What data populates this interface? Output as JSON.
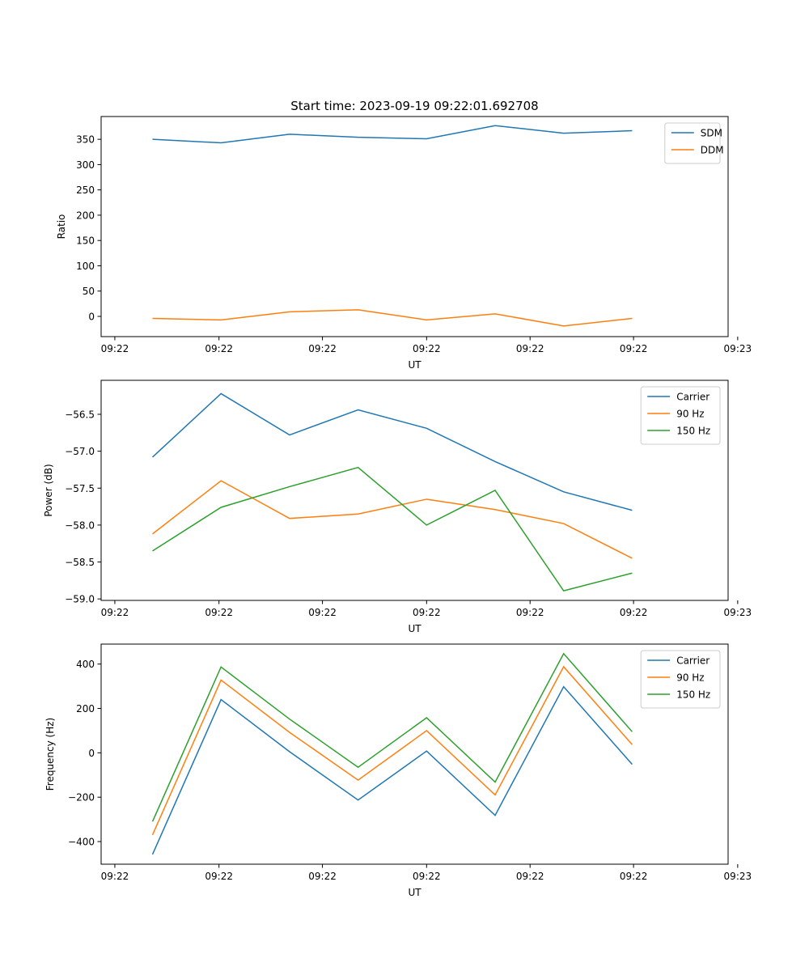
{
  "chart_data": [
    {
      "type": "line",
      "title": "Start time: 2023-09-19 09:22:01.692708",
      "xlabel": "UT",
      "ylabel": "Ratio",
      "x": [
        1,
        2,
        3,
        4,
        5,
        6,
        7,
        8
      ],
      "xlim": [
        0.25,
        9.4
      ],
      "x_ticks": [
        0.45,
        1.97,
        3.48,
        5.0,
        6.51,
        8.02,
        9.54
      ],
      "x_tick_labels": [
        "09:22",
        "09:22",
        "09:22",
        "09:22",
        "09:22",
        "09:22",
        "09:23"
      ],
      "ylim": [
        -40,
        395
      ],
      "y_ticks": [
        0,
        50,
        100,
        150,
        200,
        250,
        300,
        350
      ],
      "y_tick_labels": [
        "0",
        "50",
        "100",
        "150",
        "200",
        "250",
        "300",
        "350"
      ],
      "legend": "top-right",
      "series": [
        {
          "name": "SDM",
          "color": "#1f77b4",
          "values": [
            350,
            343,
            360,
            354,
            351,
            377,
            362,
            367
          ]
        },
        {
          "name": "DDM",
          "color": "#ff7f0e",
          "values": [
            -4,
            -7,
            9,
            13,
            -7,
            5,
            -19,
            -4
          ]
        }
      ]
    },
    {
      "type": "line",
      "title": "",
      "xlabel": "UT",
      "ylabel": "Power (dB)",
      "x": [
        1,
        2,
        3,
        4,
        5,
        6,
        7,
        8
      ],
      "xlim": [
        0.25,
        9.4
      ],
      "x_ticks": [
        0.45,
        1.97,
        3.48,
        5.0,
        6.51,
        8.02,
        9.54
      ],
      "x_tick_labels": [
        "09:22",
        "09:22",
        "09:22",
        "09:22",
        "09:22",
        "09:22",
        "09:23"
      ],
      "ylim": [
        -59.02,
        -56.04
      ],
      "y_ticks": [
        -59.0,
        -58.5,
        -58.0,
        -57.5,
        -57.0,
        -56.5
      ],
      "y_tick_labels": [
        "−59.0",
        "−58.5",
        "−58.0",
        "−57.5",
        "−57.0",
        "−56.5"
      ],
      "legend": "top-right",
      "series": [
        {
          "name": "Carrier",
          "color": "#1f77b4",
          "values": [
            -57.08,
            -56.22,
            -56.78,
            -56.44,
            -56.69,
            -57.14,
            -57.55,
            -57.8
          ]
        },
        {
          "name": "90 Hz",
          "color": "#ff7f0e",
          "values": [
            -58.12,
            -57.4,
            -57.91,
            -57.85,
            -57.65,
            -57.79,
            -57.98,
            -58.45
          ]
        },
        {
          "name": "150 Hz",
          "color": "#2ca02c",
          "values": [
            -58.35,
            -57.76,
            -57.48,
            -57.22,
            -58.0,
            -57.53,
            -58.89,
            -58.65
          ]
        }
      ]
    },
    {
      "type": "line",
      "title": "",
      "xlabel": "UT",
      "ylabel": "Frequency (Hz)",
      "x": [
        1,
        2,
        3,
        4,
        5,
        6,
        7,
        8
      ],
      "xlim": [
        0.25,
        9.4
      ],
      "x_ticks": [
        0.45,
        1.97,
        3.48,
        5.0,
        6.51,
        8.02,
        9.54
      ],
      "x_tick_labels": [
        "09:22",
        "09:22",
        "09:22",
        "09:22",
        "09:22",
        "09:22",
        "09:23"
      ],
      "ylim": [
        -502,
        490
      ],
      "y_ticks": [
        -400,
        -200,
        0,
        200,
        400
      ],
      "y_tick_labels": [
        "−400",
        "−200",
        "0",
        "200",
        "400"
      ],
      "legend": "top-right",
      "series": [
        {
          "name": "Carrier",
          "color": "#1f77b4",
          "values": [
            -458,
            240,
            5,
            -213,
            8,
            -282,
            298,
            -52
          ]
        },
        {
          "name": "90 Hz",
          "color": "#ff7f0e",
          "values": [
            -370,
            328,
            92,
            -123,
            100,
            -190,
            388,
            37
          ]
        },
        {
          "name": "150 Hz",
          "color": "#2ca02c",
          "values": [
            -310,
            387,
            152,
            -65,
            158,
            -132,
            447,
            95
          ]
        }
      ]
    }
  ]
}
